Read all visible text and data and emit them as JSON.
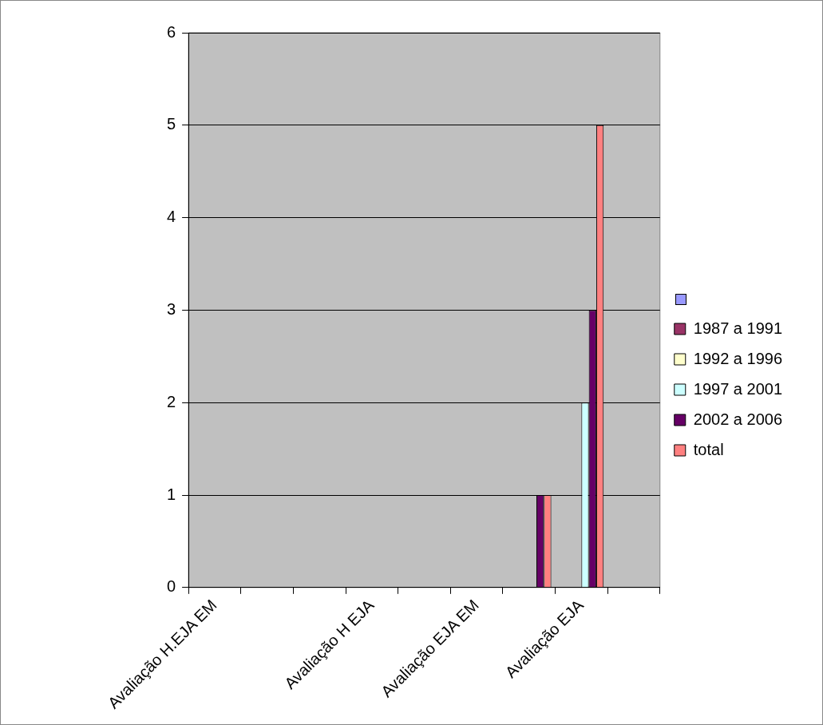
{
  "chart_data": {
    "type": "bar",
    "categories": [
      "Avaliação H.EJA EM",
      null,
      null,
      "Avaliação H EJA",
      null,
      "Avaliação EJA EM",
      null,
      "Avaliação EJA",
      null
    ],
    "series": [
      {
        "color": "#9999ff",
        "values": [
          0,
          0,
          0,
          0,
          0,
          0,
          0,
          0,
          0
        ]
      },
      {
        "name": "1987 a 1991",
        "color": "#993366",
        "values": [
          0,
          0,
          0,
          0,
          0,
          0,
          0,
          0,
          0
        ]
      },
      {
        "name": "1992 a 1996",
        "color": "#ffffcc",
        "values": [
          0,
          0,
          0,
          0,
          0,
          0,
          0,
          0,
          0
        ]
      },
      {
        "name": "1997 a 2001",
        "color": "#ccffff",
        "values": [
          0,
          0,
          0,
          0,
          0,
          0,
          0,
          2,
          0
        ]
      },
      {
        "name": "2002 a 2006",
        "color": "#660066",
        "values": [
          0,
          0,
          0,
          0,
          0,
          0,
          1,
          3,
          0
        ]
      },
      {
        "name": "total",
        "color": "#ff8080",
        "values": [
          0,
          0,
          0,
          0,
          0,
          0,
          1,
          5,
          0
        ]
      }
    ],
    "ylim": [
      0,
      6
    ],
    "yticks": [
      0,
      1,
      2,
      3,
      4,
      5,
      6
    ],
    "grid": "y",
    "legend": "right"
  }
}
